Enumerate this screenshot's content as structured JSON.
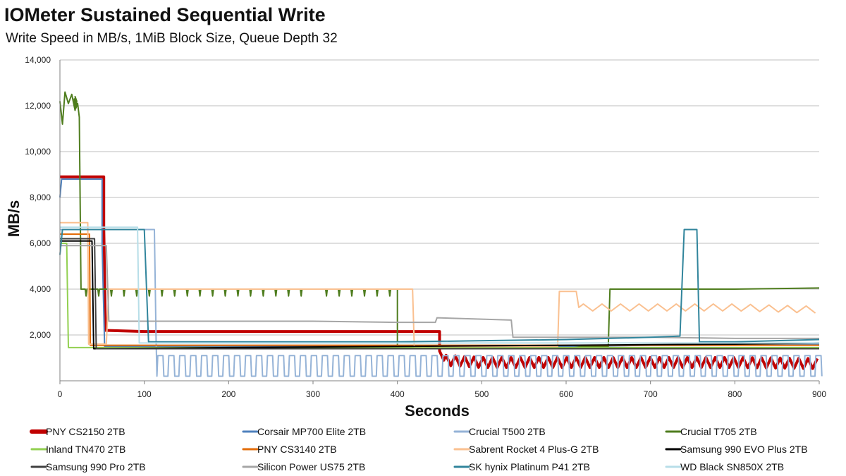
{
  "chart_data": {
    "type": "line",
    "title": "IOMeter Sustained Sequential Write",
    "subtitle": "Write Speed in MB/s, 1MiB Block Size, Queue Depth 32",
    "xlabel": "Seconds",
    "ylabel": "MB/s",
    "xlim": [
      0,
      900
    ],
    "ylim": [
      0,
      14000
    ],
    "xticks": [
      0,
      100,
      200,
      300,
      400,
      500,
      600,
      700,
      800,
      900
    ],
    "xtick_labels": [
      "0",
      "100",
      "200",
      "300",
      "400",
      "500",
      "600",
      "700",
      "800",
      "900"
    ],
    "yticks": [
      0,
      2000,
      4000,
      6000,
      8000,
      10000,
      12000,
      14000
    ],
    "ytick_labels": [
      "",
      "2,000",
      "4,000",
      "6,000",
      "8,000",
      "10,000",
      "12,000",
      "14,000"
    ],
    "grid": "horizontal",
    "legend_position": "bottom",
    "series": [
      {
        "name": "PNY CS2150 2TB",
        "color": "#c00000",
        "thick": true,
        "points": [
          [
            0,
            8900
          ],
          [
            52,
            8900
          ],
          [
            52,
            6700
          ],
          [
            54,
            2200
          ],
          [
            100,
            2150
          ],
          [
            200,
            2150
          ],
          [
            300,
            2150
          ],
          [
            400,
            2150
          ],
          [
            450,
            2150
          ],
          [
            450,
            1300
          ],
          [
            455,
            900
          ],
          [
            500,
            800
          ],
          [
            600,
            800
          ],
          [
            700,
            800
          ],
          [
            800,
            800
          ],
          [
            900,
            750
          ]
        ],
        "wobble": [
          [
            455,
            900,
            220,
            11
          ]
        ]
      },
      {
        "name": "Corsair MP700 Elite 2TB",
        "color": "#4f81bd",
        "points": [
          [
            0,
            8000
          ],
          [
            2,
            8800
          ],
          [
            50,
            8800
          ],
          [
            50,
            6000
          ],
          [
            53,
            1500
          ],
          [
            200,
            1500
          ],
          [
            400,
            1500
          ],
          [
            500,
            1500
          ],
          [
            600,
            1500
          ],
          [
            700,
            1550
          ],
          [
            800,
            1550
          ],
          [
            900,
            1600
          ]
        ]
      },
      {
        "name": "Crucial T500 2TB",
        "color": "#95b3d7",
        "points": [
          [
            0,
            6600
          ],
          [
            112,
            6600
          ],
          [
            114,
            1800
          ],
          [
            115,
            200
          ],
          [
            900,
            200
          ]
        ],
        "square": [
          [
            115,
            900,
            200,
            1100,
            13
          ]
        ]
      },
      {
        "name": "Crucial T705 2TB",
        "color": "#4f7d1e",
        "points": [
          [
            0,
            12200
          ],
          [
            3,
            11200
          ],
          [
            6,
            12600
          ],
          [
            10,
            12100
          ],
          [
            14,
            12500
          ],
          [
            18,
            11800
          ],
          [
            20,
            12200
          ],
          [
            18,
            12400
          ],
          [
            20,
            12000
          ],
          [
            18,
            11900
          ],
          [
            20,
            12100
          ],
          [
            17,
            12300
          ],
          [
            19,
            11900
          ],
          [
            21,
            12100
          ],
          [
            23,
            11500
          ],
          [
            25,
            4000
          ],
          [
            50,
            4000
          ],
          [
            100,
            4000
          ],
          [
            200,
            4000
          ],
          [
            300,
            4000
          ],
          [
            400,
            4000
          ],
          [
            400,
            1400
          ],
          [
            500,
            1400
          ],
          [
            600,
            1400
          ],
          [
            620,
            1500
          ],
          [
            650,
            1500
          ],
          [
            652,
            4000
          ],
          [
            700,
            4000
          ],
          [
            800,
            4000
          ],
          [
            900,
            4050
          ]
        ],
        "dips": [
          [
            30,
            400,
            15,
            3700
          ]
        ]
      },
      {
        "name": "Inland TN470 2TB",
        "color": "#92d050",
        "points": [
          [
            0,
            6000
          ],
          [
            8,
            6000
          ],
          [
            10,
            1450
          ],
          [
            60,
            1450
          ],
          [
            200,
            1450
          ],
          [
            400,
            1450
          ],
          [
            600,
            1450
          ],
          [
            800,
            1450
          ],
          [
            900,
            1450
          ]
        ]
      },
      {
        "name": "PNY CS3140 2TB",
        "color": "#e36c09",
        "points": [
          [
            0,
            6400
          ],
          [
            35,
            6400
          ],
          [
            36,
            1550
          ],
          [
            100,
            1550
          ],
          [
            200,
            1550
          ],
          [
            400,
            1550
          ],
          [
            600,
            1550
          ],
          [
            800,
            1550
          ],
          [
            900,
            1550
          ]
        ]
      },
      {
        "name": "Sabrent Rocket 4 Plus-G 2TB",
        "color": "#fac090",
        "points": [
          [
            0,
            6900
          ],
          [
            33,
            6900
          ],
          [
            34,
            1600
          ],
          [
            55,
            1600
          ],
          [
            58,
            4000
          ],
          [
            200,
            4000
          ],
          [
            300,
            4000
          ],
          [
            418,
            4000
          ],
          [
            420,
            1500
          ],
          [
            500,
            1500
          ],
          [
            590,
            1500
          ],
          [
            592,
            3900
          ],
          [
            612,
            3900
          ],
          [
            615,
            3200
          ],
          [
            700,
            3200
          ],
          [
            800,
            3200
          ],
          [
            900,
            3100
          ]
        ],
        "wobble": [
          [
            615,
            900,
            150,
            22
          ]
        ]
      },
      {
        "name": "Samsung 990 EVO Plus 2TB",
        "color": "#000000",
        "points": [
          [
            0,
            6100
          ],
          [
            38,
            6100
          ],
          [
            40,
            1400
          ],
          [
            200,
            1450
          ],
          [
            400,
            1500
          ],
          [
            600,
            1550
          ],
          [
            800,
            1600
          ],
          [
            900,
            1650
          ]
        ]
      },
      {
        "name": "Samsung 990 Pro 2TB",
        "color": "#404040",
        "points": [
          [
            0,
            6200
          ],
          [
            41,
            6200
          ],
          [
            43,
            1400
          ],
          [
            200,
            1400
          ],
          [
            400,
            1400
          ],
          [
            600,
            1400
          ],
          [
            800,
            1400
          ],
          [
            900,
            1400
          ]
        ]
      },
      {
        "name": "Silicon Power US75 2TB",
        "color": "#a6a6a6",
        "points": [
          [
            0,
            5900
          ],
          [
            55,
            5900
          ],
          [
            58,
            2600
          ],
          [
            200,
            2600
          ],
          [
            300,
            2600
          ],
          [
            400,
            2550
          ],
          [
            445,
            2550
          ],
          [
            447,
            2750
          ],
          [
            535,
            2650
          ],
          [
            537,
            1900
          ],
          [
            600,
            1900
          ],
          [
            700,
            1900
          ],
          [
            800,
            1850
          ],
          [
            900,
            1850
          ]
        ]
      },
      {
        "name": "SK hynix Platinum P41 2TB",
        "color": "#31859c",
        "points": [
          [
            0,
            5500
          ],
          [
            3,
            6600
          ],
          [
            100,
            6600
          ],
          [
            105,
            1700
          ],
          [
            200,
            1700
          ],
          [
            400,
            1700
          ],
          [
            600,
            1800
          ],
          [
            700,
            1900
          ],
          [
            735,
            1950
          ],
          [
            740,
            6600
          ],
          [
            755,
            6600
          ],
          [
            758,
            1700
          ],
          [
            800,
            1700
          ],
          [
            900,
            1800
          ]
        ]
      },
      {
        "name": "WD Black SN850X 2TB",
        "color": "#b7dee8",
        "points": [
          [
            0,
            6700
          ],
          [
            92,
            6700
          ],
          [
            94,
            1650
          ],
          [
            200,
            1650
          ],
          [
            400,
            1650
          ],
          [
            600,
            1650
          ],
          [
            800,
            1650
          ],
          [
            900,
            1650
          ]
        ]
      }
    ]
  }
}
